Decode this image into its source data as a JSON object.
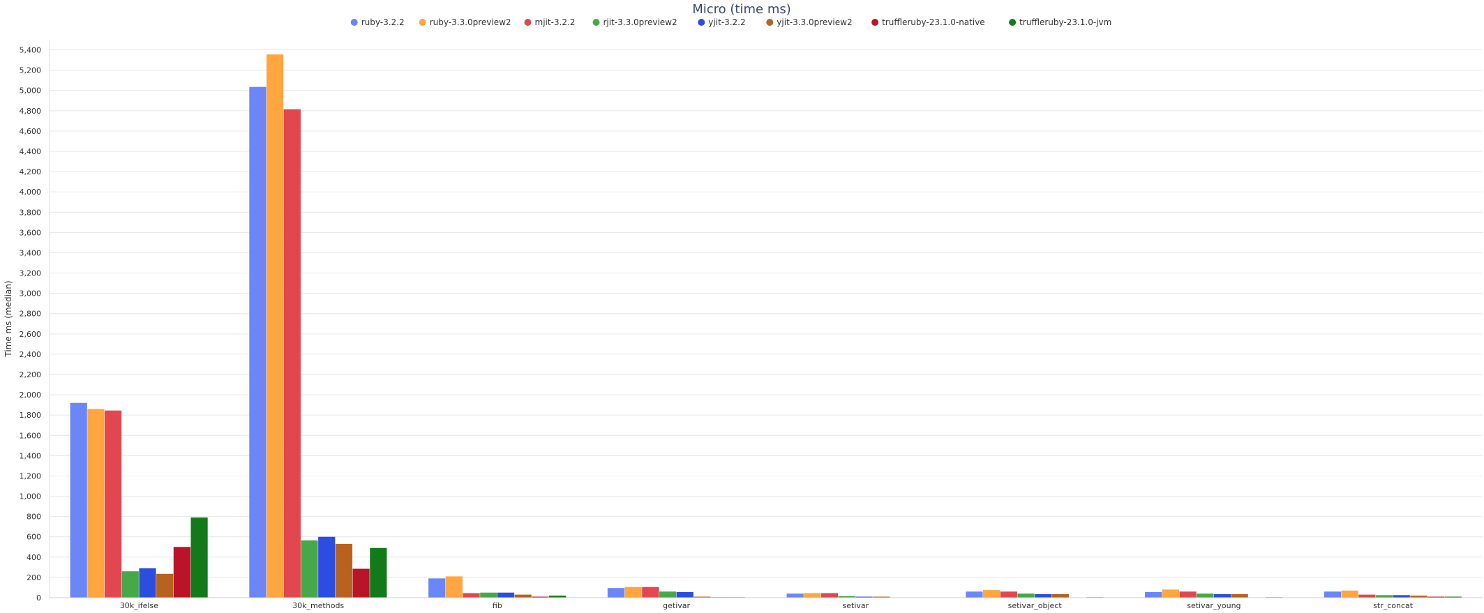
{
  "chart_data": {
    "type": "bar",
    "title": "Micro (time ms)",
    "xlabel": "",
    "ylabel": "Time ms (median)",
    "ylim": [
      0,
      5500
    ],
    "yticks": [
      "0",
      "200",
      "400",
      "600",
      "800",
      "1,000",
      "1,200",
      "1,400",
      "1,600",
      "1,800",
      "2,000",
      "2,200",
      "2,400",
      "2,600",
      "2,800",
      "3,000",
      "3,200",
      "3,400",
      "3,600",
      "3,800",
      "4,000",
      "4,200",
      "4,400",
      "4,600",
      "4,800",
      "5,000",
      "5,200",
      "5,400"
    ],
    "grid": true,
    "legend_position": "top",
    "categories": [
      "30k_ifelse",
      "30k_methods",
      "fib",
      "getivar",
      "setivar",
      "setivar_object",
      "setivar_young",
      "str_concat"
    ],
    "series": [
      {
        "name": "ruby-3.2.2",
        "color": "#6a86f7",
        "values": [
          1920,
          5035,
          190,
          95,
          40,
          60,
          55,
          60
        ]
      },
      {
        "name": "ruby-3.3.0preview2",
        "color": "#ffa640",
        "values": [
          1860,
          5355,
          210,
          105,
          45,
          75,
          80,
          70
        ]
      },
      {
        "name": "mjit-3.2.2",
        "color": "#e2474f",
        "values": [
          1845,
          4815,
          45,
          105,
          45,
          60,
          60,
          30
        ]
      },
      {
        "name": "rjit-3.3.0preview2",
        "color": "#47a84a",
        "values": [
          260,
          565,
          50,
          60,
          15,
          40,
          40,
          25
        ]
      },
      {
        "name": "yjit-3.2.2",
        "color": "#2c4ee0",
        "values": [
          290,
          600,
          50,
          55,
          10,
          35,
          35,
          25
        ]
      },
      {
        "name": "yjit-3.3.0preview2",
        "color": "#b8621f",
        "values": [
          235,
          530,
          30,
          10,
          10,
          35,
          35,
          20
        ]
      },
      {
        "name": "truffleruby-23.1.0-native",
        "color": "#bb1428",
        "values": [
          500,
          285,
          10,
          5,
          3,
          3,
          3,
          10
        ]
      },
      {
        "name": "truffleruby-23.1.0-jvm",
        "color": "#137a1a",
        "values": [
          790,
          490,
          20,
          5,
          3,
          5,
          5,
          10
        ]
      }
    ]
  }
}
